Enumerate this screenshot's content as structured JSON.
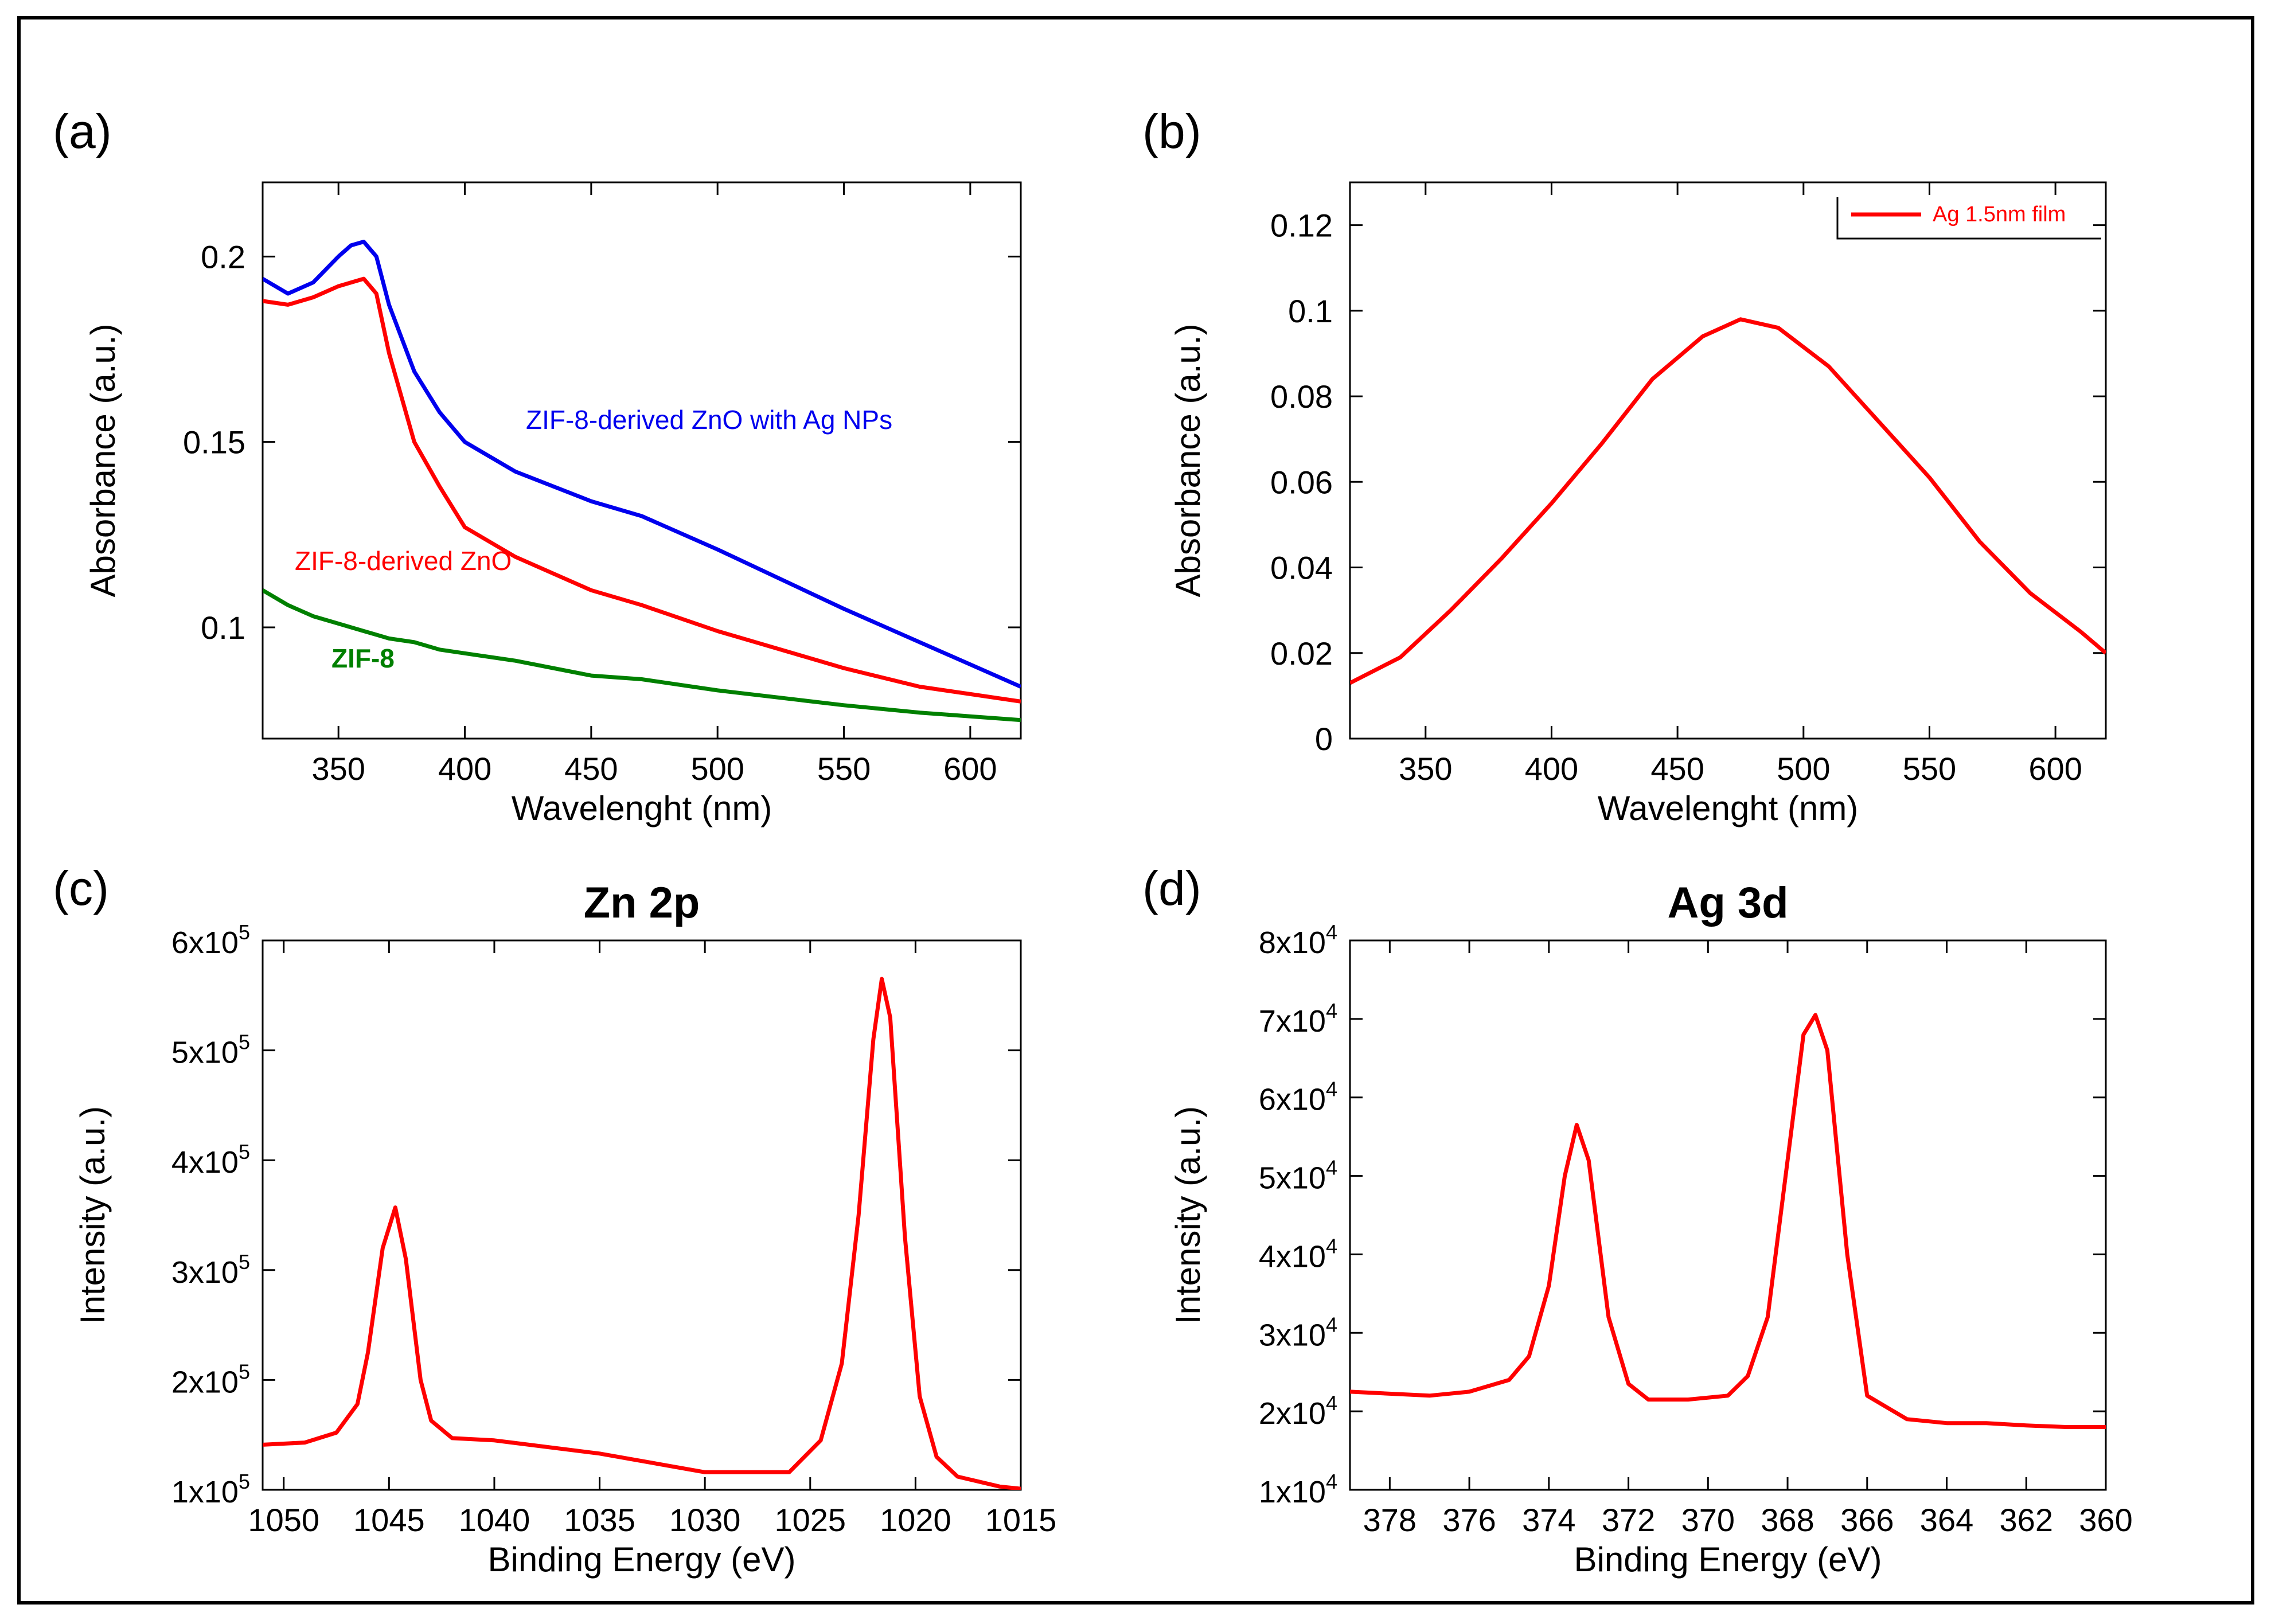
{
  "figure": {
    "panels": [
      {
        "id": "a",
        "label": "(a)",
        "title": "",
        "xlabel": "Wavelenght (nm)",
        "ylabel": "Absorbance (a.u.)",
        "xticks": [
          "350",
          "400",
          "450",
          "500",
          "550",
          "600"
        ],
        "yticks": [
          "0.1",
          "0.15",
          "0.2"
        ],
        "annotations": [
          "ZIF-8-derived ZnO with Ag NPs",
          "ZIF-8-derived ZnO",
          "ZIF-8"
        ]
      },
      {
        "id": "b",
        "label": "(b)",
        "title": "",
        "xlabel": "Wavelenght (nm)",
        "ylabel": "Absorbance (a.u.)",
        "xticks": [
          "350",
          "400",
          "450",
          "500",
          "550",
          "600"
        ],
        "yticks": [
          "0",
          "0.02",
          "0.04",
          "0.06",
          "0.08",
          "0.1",
          "0.12"
        ],
        "legend": "Ag 1.5nm film"
      },
      {
        "id": "c",
        "label": "(c)",
        "title": "Zn 2p",
        "xlabel": "Binding Energy (eV)",
        "ylabel": "Intensity (a.u.)",
        "xticks": [
          "1050",
          "1045",
          "1040",
          "1035",
          "1030",
          "1025",
          "1020",
          "1015"
        ],
        "yticks": [
          {
            "m": "1x10",
            "e": "5"
          },
          {
            "m": "2x10",
            "e": "5"
          },
          {
            "m": "3x10",
            "e": "5"
          },
          {
            "m": "4x10",
            "e": "5"
          },
          {
            "m": "5x10",
            "e": "5"
          },
          {
            "m": "6x10",
            "e": "5"
          }
        ]
      },
      {
        "id": "d",
        "label": "(d)",
        "title": "Ag 3d",
        "xlabel": "Binding Energy (eV)",
        "ylabel": "Intensity (a.u.)",
        "xticks": [
          "378",
          "376",
          "374",
          "372",
          "370",
          "368",
          "366",
          "364",
          "362",
          "360"
        ],
        "yticks": [
          {
            "m": "1x10",
            "e": "4"
          },
          {
            "m": "2x10",
            "e": "4"
          },
          {
            "m": "3x10",
            "e": "4"
          },
          {
            "m": "4x10",
            "e": "4"
          },
          {
            "m": "5x10",
            "e": "4"
          },
          {
            "m": "6x10",
            "e": "4"
          },
          {
            "m": "7x10",
            "e": "4"
          },
          {
            "m": "8x10",
            "e": "4"
          }
        ]
      }
    ]
  },
  "chart_data": [
    {
      "type": "line",
      "panel": "(a)",
      "title": "",
      "xlabel": "Wavelenght (nm)",
      "ylabel": "Absorbance (a.u.)",
      "xlim": [
        320,
        620
      ],
      "ylim": [
        0.07,
        0.22
      ],
      "x": [
        320,
        330,
        340,
        350,
        355,
        360,
        365,
        370,
        380,
        390,
        400,
        420,
        450,
        470,
        500,
        550,
        580,
        600,
        620
      ],
      "series": [
        {
          "name": "ZIF-8-derived ZnO with Ag NPs",
          "color": "#0000ee",
          "values": [
            0.194,
            0.19,
            0.193,
            0.2,
            0.203,
            0.204,
            0.2,
            0.187,
            0.169,
            0.158,
            0.15,
            0.142,
            0.134,
            0.13,
            0.121,
            0.105,
            0.096,
            0.09,
            0.084
          ]
        },
        {
          "name": "ZIF-8-derived ZnO",
          "color": "#ff0000",
          "values": [
            0.188,
            0.187,
            0.189,
            0.192,
            0.193,
            0.194,
            0.19,
            0.174,
            0.15,
            0.138,
            0.127,
            0.119,
            0.11,
            0.106,
            0.099,
            0.089,
            0.084,
            0.082,
            0.08
          ]
        },
        {
          "name": "ZIF-8",
          "color": "#008000",
          "values": [
            0.11,
            0.106,
            0.103,
            0.101,
            0.1,
            0.099,
            0.098,
            0.097,
            0.096,
            0.094,
            0.093,
            0.091,
            0.087,
            0.086,
            0.083,
            0.079,
            0.077,
            0.076,
            0.075
          ]
        }
      ]
    },
    {
      "type": "line",
      "panel": "(b)",
      "title": "",
      "xlabel": "Wavelenght (nm)",
      "ylabel": "Absorbance (a.u.)",
      "xlim": [
        320,
        620
      ],
      "ylim": [
        0,
        0.13
      ],
      "x": [
        320,
        340,
        360,
        380,
        400,
        420,
        440,
        460,
        475,
        490,
        510,
        530,
        550,
        570,
        590,
        610,
        620
      ],
      "series": [
        {
          "name": "Ag 1.5nm film",
          "color": "#ff0000",
          "values": [
            0.013,
            0.019,
            0.03,
            0.042,
            0.055,
            0.069,
            0.084,
            0.094,
            0.098,
            0.096,
            0.087,
            0.074,
            0.061,
            0.046,
            0.034,
            0.025,
            0.02
          ]
        }
      ]
    },
    {
      "type": "line",
      "panel": "(c)",
      "title": "Zn 2p",
      "xlabel": "Binding Energy (eV)",
      "ylabel": "Intensity (a.u.)",
      "xlim": [
        1051,
        1015
      ],
      "ylim": [
        100000,
        600000
      ],
      "x": [
        1051,
        1049,
        1047.5,
        1046.5,
        1046,
        1045.3,
        1044.7,
        1044.2,
        1043.5,
        1043,
        1042,
        1040,
        1035,
        1030,
        1026,
        1024.5,
        1023.5,
        1022.7,
        1022,
        1021.6,
        1021.2,
        1020.5,
        1019.8,
        1019,
        1018,
        1016,
        1015
      ],
      "series": [
        {
          "name": "Zn 2p",
          "color": "#ff0000",
          "values": [
            141000,
            143000,
            152000,
            178000,
            225000,
            320000,
            357000,
            310000,
            200000,
            163000,
            147000,
            145000,
            133000,
            116000,
            116000,
            145000,
            215000,
            350000,
            510000,
            565000,
            530000,
            330000,
            185000,
            130000,
            112000,
            103000,
            101000
          ]
        }
      ]
    },
    {
      "type": "line",
      "panel": "(d)",
      "title": "Ag 3d",
      "xlabel": "Binding Energy (eV)",
      "ylabel": "Intensity (a.u.)",
      "xlim": [
        379,
        360
      ],
      "ylim": [
        10000,
        80000
      ],
      "x": [
        379,
        377,
        376,
        375,
        374.5,
        374,
        373.6,
        373.3,
        373,
        372.5,
        372,
        371.5,
        370.5,
        369.5,
        369,
        368.5,
        368,
        367.6,
        367.3,
        367,
        366.5,
        366,
        365,
        364,
        363,
        362,
        361,
        360
      ],
      "series": [
        {
          "name": "Ag 3d",
          "color": "#ff0000",
          "values": [
            22500,
            22000,
            22500,
            24000,
            27000,
            36000,
            50000,
            56500,
            52000,
            32000,
            23500,
            21500,
            21500,
            22000,
            24500,
            32000,
            52000,
            68000,
            70500,
            66000,
            40000,
            22000,
            19000,
            18500,
            18500,
            18200,
            18000,
            18000
          ]
        }
      ]
    }
  ]
}
